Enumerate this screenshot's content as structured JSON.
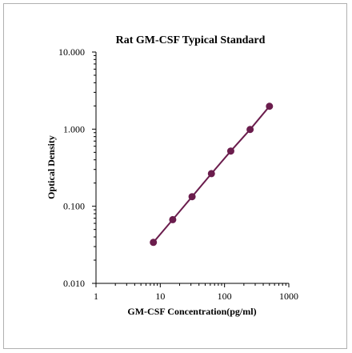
{
  "chart_data": {
    "type": "line",
    "title": "Rat GM-CSF Typical Standard",
    "xlabel": "GM-CSF Concentration(pg/ml)",
    "ylabel": "Optical Density",
    "x_scale": "log",
    "y_scale": "log",
    "xlim": [
      1,
      1000
    ],
    "ylim": [
      0.01,
      10
    ],
    "x_ticks": [
      1,
      10,
      100,
      1000
    ],
    "x_tick_labels": [
      "1",
      "10",
      "100",
      "1000"
    ],
    "y_ticks": [
      0.01,
      0.1,
      1,
      10
    ],
    "y_tick_labels": [
      "0.010",
      "0.100",
      "1.000",
      "10.000"
    ],
    "grid": false,
    "series": [
      {
        "color": "#6b1d4d",
        "x": [
          7.81,
          15.63,
          31.25,
          62.5,
          125,
          250,
          500
        ],
        "y": [
          0.034,
          0.067,
          0.133,
          0.265,
          0.52,
          0.99,
          1.98
        ]
      }
    ]
  }
}
